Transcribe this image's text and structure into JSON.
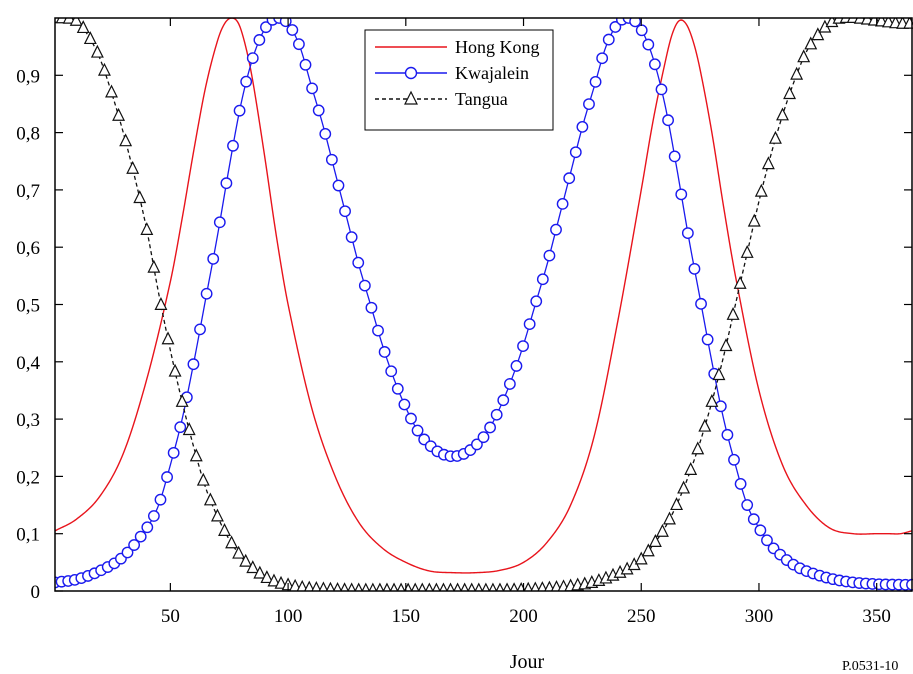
{
  "chart_data": {
    "type": "line",
    "title": "",
    "xlabel": "Jour",
    "ylabel": "",
    "xlim": [
      1,
      365
    ],
    "ylim": [
      0,
      1
    ],
    "x_ticks": [
      50,
      100,
      150,
      200,
      250,
      300,
      350
    ],
    "x_tick_labels": [
      "50",
      "100",
      "150",
      "200",
      "250",
      "300",
      "350"
    ],
    "y_ticks": [
      0,
      0.1,
      0.2,
      0.3,
      0.4,
      0.5,
      0.6,
      0.7,
      0.8,
      0.9
    ],
    "y_tick_labels": [
      "0",
      "0,1",
      "0,2",
      "0,3",
      "0,4",
      "0,5",
      "0,6",
      "0,7",
      "0,8",
      "0,9"
    ],
    "grid": false,
    "legend_position": "top-center",
    "series": [
      {
        "name": "Hong Kong",
        "color": "#e8141c",
        "line_style": "solid",
        "marker": "none",
        "x": [
          1,
          10,
          20,
          30,
          40,
          50,
          55,
          60,
          65,
          70,
          73,
          76,
          79,
          82,
          85,
          90,
          95,
          100,
          110,
          120,
          130,
          140,
          150,
          160,
          170,
          180,
          190,
          200,
          210,
          220,
          230,
          240,
          250,
          255,
          260,
          263,
          266,
          269,
          272,
          275,
          280,
          285,
          290,
          300,
          310,
          320,
          330,
          340,
          350,
          355,
          360,
          365
        ],
        "y": [
          0.105,
          0.125,
          0.165,
          0.24,
          0.37,
          0.54,
          0.65,
          0.77,
          0.88,
          0.96,
          0.99,
          1.0,
          0.99,
          0.95,
          0.89,
          0.76,
          0.62,
          0.5,
          0.32,
          0.2,
          0.12,
          0.075,
          0.05,
          0.035,
          0.032,
          0.032,
          0.036,
          0.05,
          0.085,
          0.15,
          0.27,
          0.47,
          0.7,
          0.82,
          0.92,
          0.97,
          0.995,
          0.99,
          0.96,
          0.91,
          0.8,
          0.67,
          0.55,
          0.35,
          0.22,
          0.15,
          0.11,
          0.1,
          0.1,
          0.1,
          0.1,
          0.105
        ]
      },
      {
        "name": "Kwajalein",
        "color": "#1a1aee",
        "line_style": "solid",
        "marker": "circle",
        "x": [
          1,
          10,
          20,
          30,
          40,
          45,
          50,
          55,
          60,
          65,
          70,
          75,
          80,
          85,
          90,
          95,
          100,
          105,
          110,
          115,
          120,
          125,
          130,
          135,
          140,
          145,
          150,
          155,
          160,
          165,
          170,
          175,
          180,
          185,
          190,
          195,
          200,
          205,
          210,
          215,
          220,
          225,
          230,
          235,
          240,
          245,
          250,
          255,
          260,
          265,
          270,
          275,
          280,
          285,
          290,
          295,
          300,
          305,
          310,
          315,
          320,
          330,
          340,
          350,
          360,
          365
        ],
        "y": [
          0.015,
          0.02,
          0.035,
          0.06,
          0.11,
          0.15,
          0.22,
          0.3,
          0.4,
          0.51,
          0.62,
          0.74,
          0.85,
          0.93,
          0.98,
          1.0,
          0.99,
          0.95,
          0.88,
          0.81,
          0.73,
          0.65,
          0.57,
          0.5,
          0.43,
          0.37,
          0.32,
          0.28,
          0.255,
          0.24,
          0.235,
          0.24,
          0.255,
          0.28,
          0.32,
          0.37,
          0.43,
          0.5,
          0.57,
          0.65,
          0.73,
          0.81,
          0.88,
          0.95,
          0.99,
          1.0,
          0.98,
          0.93,
          0.85,
          0.74,
          0.62,
          0.51,
          0.4,
          0.3,
          0.22,
          0.15,
          0.11,
          0.08,
          0.06,
          0.045,
          0.035,
          0.022,
          0.015,
          0.012,
          0.011,
          0.011
        ]
      },
      {
        "name": "Tangua",
        "color": "#111111",
        "line_style": "dashed",
        "marker": "triangle",
        "x": [
          1,
          10,
          15,
          20,
          25,
          30,
          35,
          40,
          45,
          50,
          55,
          60,
          65,
          70,
          75,
          80,
          85,
          90,
          95,
          100,
          105,
          110,
          120,
          130,
          140,
          150,
          160,
          170,
          180,
          190,
          200,
          210,
          220,
          230,
          240,
          245,
          250,
          255,
          260,
          265,
          270,
          275,
          280,
          285,
          290,
          295,
          300,
          305,
          310,
          315,
          320,
          325,
          330,
          335,
          340,
          350,
          360,
          365
        ],
        "y": [
          1.0,
          0.995,
          0.97,
          0.93,
          0.87,
          0.8,
          0.72,
          0.63,
          0.52,
          0.42,
          0.33,
          0.25,
          0.18,
          0.13,
          0.09,
          0.06,
          0.04,
          0.025,
          0.015,
          0.01,
          0.006,
          0.004,
          0.002,
          0.001,
          0.001,
          0.001,
          0.001,
          0.001,
          0.001,
          0.001,
          0.002,
          0.004,
          0.008,
          0.015,
          0.03,
          0.04,
          0.055,
          0.08,
          0.11,
          0.15,
          0.2,
          0.26,
          0.33,
          0.41,
          0.5,
          0.59,
          0.68,
          0.76,
          0.83,
          0.89,
          0.94,
          0.97,
          0.99,
          1.0,
          1.0,
          0.995,
          0.99,
          0.99
        ]
      }
    ]
  },
  "figure_id": "P.0531-10"
}
